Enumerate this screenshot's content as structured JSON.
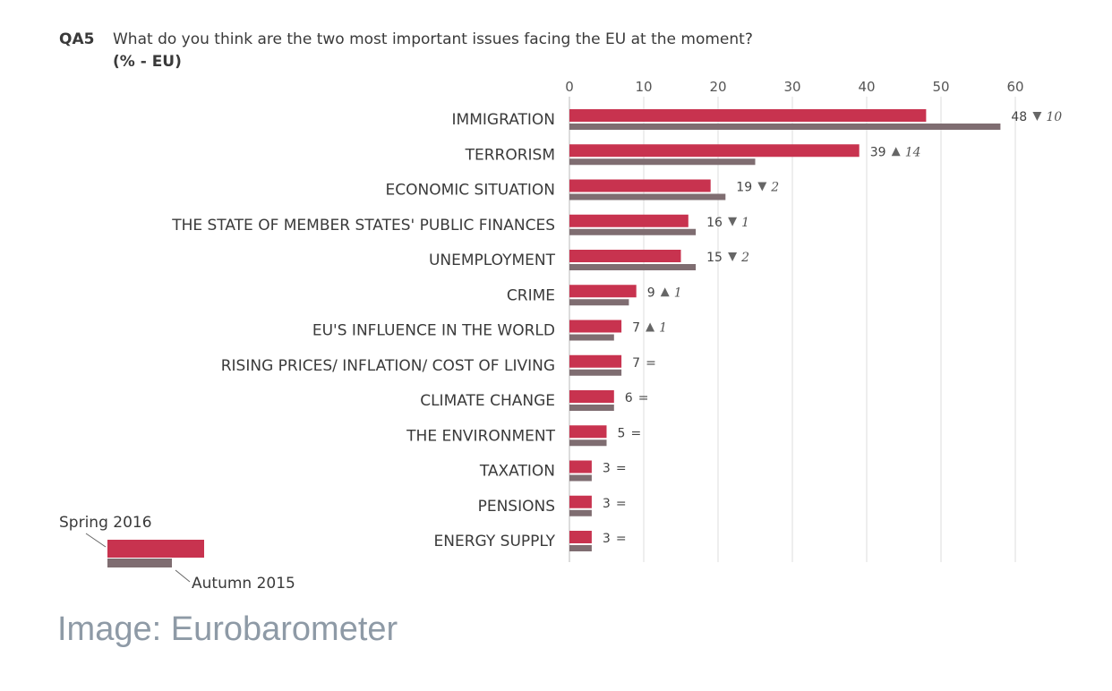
{
  "header": {
    "code": "QA5",
    "question": "What do you think are the two most important issues facing the EU at the moment?",
    "unit": "(% - EU)"
  },
  "caption": "Image: Eurobarometer",
  "chart_data": {
    "type": "bar",
    "orientation": "horizontal",
    "xlim": [
      0,
      60
    ],
    "xticks": [
      0,
      10,
      20,
      30,
      40,
      50,
      60
    ],
    "grid": true,
    "colors": {
      "spring": "#c8334f",
      "autumn": "#7f6d71"
    },
    "categories": [
      "IMMIGRATION",
      "TERRORISM",
      "ECONOMIC SITUATION",
      "THE STATE OF MEMBER STATES' PUBLIC FINANCES",
      "UNEMPLOYMENT",
      "CRIME",
      "EU'S INFLUENCE IN THE WORLD",
      "RISING PRICES/ INFLATION/ COST OF LIVING",
      "CLIMATE CHANGE",
      "THE ENVIRONMENT",
      "TAXATION",
      "PENSIONS",
      "ENERGY SUPPLY"
    ],
    "series": [
      {
        "name": "Spring 2016",
        "values": [
          48,
          39,
          19,
          16,
          15,
          9,
          7,
          7,
          6,
          5,
          3,
          3,
          3
        ]
      },
      {
        "name": "Autumn 2015",
        "values": [
          58,
          25,
          21,
          17,
          17,
          8,
          6,
          7,
          6,
          5,
          3,
          3,
          3
        ]
      }
    ],
    "changes": [
      {
        "dir": "down",
        "text": "10"
      },
      {
        "dir": "up",
        "text": "14"
      },
      {
        "dir": "down",
        "text": "2"
      },
      {
        "dir": "down",
        "text": "1"
      },
      {
        "dir": "down",
        "text": "2"
      },
      {
        "dir": "up",
        "text": "1"
      },
      {
        "dir": "up",
        "text": "1"
      },
      {
        "dir": "eq",
        "text": "="
      },
      {
        "dir": "eq",
        "text": "="
      },
      {
        "dir": "eq",
        "text": "="
      },
      {
        "dir": "eq",
        "text": "="
      },
      {
        "dir": "eq",
        "text": "="
      },
      {
        "dir": "eq",
        "text": "="
      }
    ],
    "legend": {
      "placement": "bottom-left",
      "spring_label": "Spring 2016",
      "autumn_label": "Autumn 2015"
    }
  }
}
